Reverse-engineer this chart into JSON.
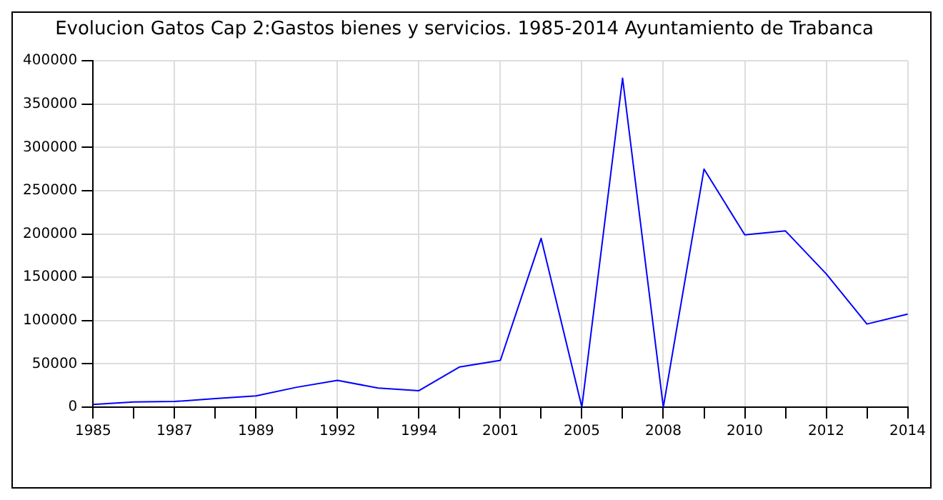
{
  "chart_data": {
    "type": "line",
    "title": "Evolucion Gatos Cap 2:Gastos bienes y servicios. 1985-2014 Ayuntamiento de Trabanca",
    "categories": [
      "1985",
      null,
      "1987",
      null,
      "1989",
      null,
      "1992",
      null,
      "1994",
      null,
      "2001",
      null,
      "2005",
      null,
      "2008",
      null,
      "2010",
      null,
      "2012",
      null,
      "2014"
    ],
    "series": [
      {
        "color": "#0000ff",
        "values": [
          3000,
          6000,
          6500,
          10000,
          13000,
          23000,
          31000,
          22000,
          19000,
          46500,
          54000,
          195000,
          0,
          380000,
          0,
          275000,
          199000,
          203500,
          154000,
          96000,
          107500
        ]
      }
    ],
    "ylim": [
      0,
      400000
    ],
    "yticks": [
      0,
      50000,
      100000,
      150000,
      200000,
      250000,
      300000,
      350000,
      400000
    ],
    "grid": true,
    "legend": false,
    "marker": "none",
    "line_style": "solid"
  }
}
